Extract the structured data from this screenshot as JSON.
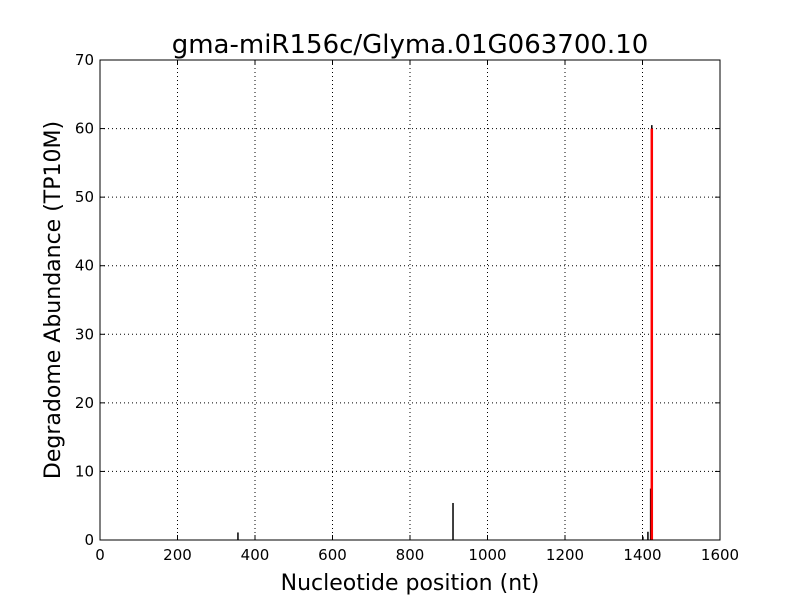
{
  "chart_data": {
    "type": "bar",
    "title": "gma-miR156c/Glyma.01G063700.10",
    "xlabel": "Nucleotide position (nt)",
    "ylabel": "Degradome Abundance (TP10M)",
    "xlim": [
      0,
      1600
    ],
    "ylim": [
      0,
      70
    ],
    "xticks": [
      0,
      200,
      400,
      600,
      800,
      1000,
      1200,
      1400,
      1600
    ],
    "yticks": [
      0,
      10,
      20,
      30,
      40,
      50,
      60,
      70
    ],
    "grid": true,
    "series": [
      {
        "color": "#000000",
        "x": [
          356,
          911,
          1401,
          1414,
          1421,
          1424
        ],
        "y": [
          1.1,
          5.4,
          0.5,
          1.2,
          7.5,
          60.5
        ]
      },
      {
        "color": "#ff0000",
        "x": [
          1424
        ],
        "y": [
          60
        ]
      }
    ]
  }
}
